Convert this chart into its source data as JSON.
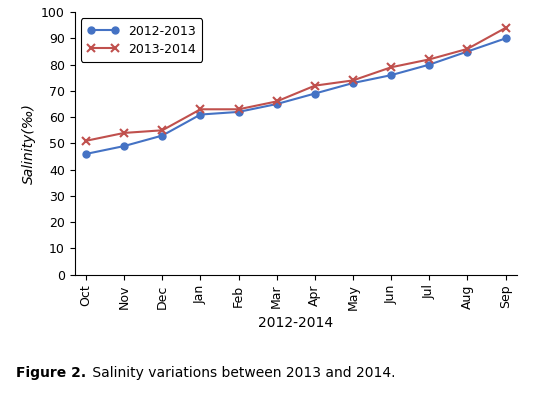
{
  "months": [
    "Oct",
    "Nov",
    "Dec",
    "Jan",
    "Feb",
    "Mar",
    "Apr",
    "May",
    "Jun",
    "Jul",
    "Aug",
    "Sep"
  ],
  "series1_label": "2012-2013",
  "series2_label": "2013-2014",
  "series1_values": [
    46,
    49,
    53,
    61,
    62,
    65,
    69,
    73,
    76,
    80,
    85,
    90
  ],
  "series2_values": [
    51,
    54,
    55,
    63,
    63,
    66,
    72,
    74,
    79,
    82,
    86,
    94
  ],
  "series1_color": "#4472C4",
  "series2_color": "#C0504D",
  "xlabel": "2012-2014",
  "ylabel": "Salinity(‰)",
  "ylim": [
    0,
    100
  ],
  "yticks": [
    0,
    10,
    20,
    30,
    40,
    50,
    60,
    70,
    80,
    90,
    100
  ],
  "caption_bold": "Figure 2.",
  "caption_normal": " Salinity variations between 2013 and 2014.",
  "marker1": "o",
  "marker2": "x",
  "marker1_size": 5,
  "marker2_size": 6,
  "linewidth": 1.5,
  "tick_fontsize": 9,
  "xlabel_fontsize": 10,
  "ylabel_fontsize": 10,
  "legend_fontsize": 9,
  "caption_fontsize": 10
}
